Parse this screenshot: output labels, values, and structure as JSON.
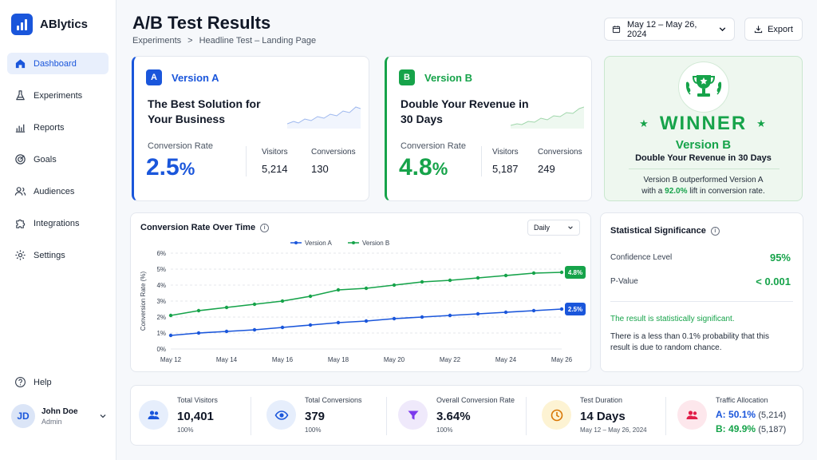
{
  "app": {
    "name": "ABlytics"
  },
  "nav": [
    {
      "label": "Dashboard",
      "icon": "home-icon"
    },
    {
      "label": "Experiments",
      "icon": "flask-icon"
    },
    {
      "label": "Reports",
      "icon": "bar-chart-icon"
    },
    {
      "label": "Goals",
      "icon": "target-icon"
    },
    {
      "label": "Audiences",
      "icon": "users-icon"
    },
    {
      "label": "Integrations",
      "icon": "puzzle-icon"
    },
    {
      "label": "Settings",
      "icon": "gear-icon"
    }
  ],
  "help": {
    "label": "Help"
  },
  "user": {
    "initials": "JD",
    "name": "John Doe",
    "role": "Admin"
  },
  "header": {
    "title": "A/B Test Results",
    "breadcrumb": [
      "Experiments",
      ">",
      "Headline Test – Landing Page"
    ],
    "date_range": "May 12 – May 26, 2024",
    "export_label": "Export"
  },
  "version_a": {
    "badge": "A",
    "name": "Version A",
    "headline": "The Best Solution for Your Business",
    "cr_label": "Conversion Rate",
    "cr_value": "2.5",
    "cr_unit": "%",
    "visitors_label": "Visitors",
    "visitors": "5,214",
    "conversions_label": "Conversions",
    "conversions": "130"
  },
  "version_b": {
    "badge": "B",
    "name": "Version B",
    "headline": "Double Your Revenue in 30 Days",
    "cr_label": "Conversion Rate",
    "cr_value": "4.8",
    "cr_unit": "%",
    "visitors_label": "Visitors",
    "visitors": "5,187",
    "conversions_label": "Conversions",
    "conversions": "249"
  },
  "winner": {
    "title": "WINNER",
    "version": "Version B",
    "headline": "Double Your Revenue in 30 Days",
    "desc_1": "Version B outperformed Version A",
    "desc_2_pre": "with a ",
    "lift": "92.0%",
    "desc_2_post": " lift in conversion rate."
  },
  "chart": {
    "title": "Conversion Rate Over Time",
    "interval": "Daily"
  },
  "chart_data": {
    "type": "line",
    "ylabel": "Conversion Rate (%)",
    "ylim": [
      0,
      6
    ],
    "yticks": [
      "0%",
      "1%",
      "2%",
      "3%",
      "4%",
      "5%",
      "6%"
    ],
    "xticks": [
      "May 12",
      "May 14",
      "May 16",
      "May 18",
      "May 20",
      "May 22",
      "May 24",
      "May 26"
    ],
    "x": [
      "May 12",
      "May 13",
      "May 14",
      "May 15",
      "May 16",
      "May 17",
      "May 18",
      "May 19",
      "May 20",
      "May 21",
      "May 22",
      "May 23",
      "May 24",
      "May 25",
      "May 26"
    ],
    "legend": "top",
    "grid": true,
    "series": [
      {
        "name": "Version A",
        "color": "#1a56db",
        "end_label": "2.5%",
        "values": [
          0.85,
          1.0,
          1.1,
          1.2,
          1.35,
          1.5,
          1.65,
          1.75,
          1.9,
          2.0,
          2.1,
          2.2,
          2.3,
          2.4,
          2.5
        ]
      },
      {
        "name": "Version B",
        "color": "#16a34a",
        "end_label": "4.8%",
        "values": [
          2.1,
          2.4,
          2.6,
          2.8,
          3.0,
          3.3,
          3.7,
          3.8,
          4.0,
          4.2,
          4.3,
          4.45,
          4.6,
          4.75,
          4.8
        ]
      }
    ]
  },
  "significance": {
    "title": "Statistical Significance",
    "confidence_label": "Confidence Level",
    "confidence": "95%",
    "pvalue_label": "P-Value",
    "pvalue": "< 0.001",
    "result": "The result is statistically significant.",
    "desc": "There is a less than 0.1% probability that this result is due to random chance."
  },
  "stats": {
    "visitors": {
      "label": "Total Visitors",
      "value": "10,401",
      "sub": "100%"
    },
    "conversions": {
      "label": "Total Conversions",
      "value": "379",
      "sub": "100%"
    },
    "overall": {
      "label": "Overall Conversion Rate",
      "value": "3.64%",
      "sub": "100%"
    },
    "duration": {
      "label": "Test Duration",
      "value": "14 Days",
      "sub": "May 12 – May 26, 2024"
    },
    "allocation": {
      "label": "Traffic Allocation",
      "a_key": "A:",
      "a_pct": "50.1%",
      "a_n": "(5,214)",
      "b_key": "B:",
      "b_pct": "49.9%",
      "b_n": "(5,187)"
    }
  },
  "colors": {
    "primary": "#1a56db",
    "success": "#16a34a"
  }
}
